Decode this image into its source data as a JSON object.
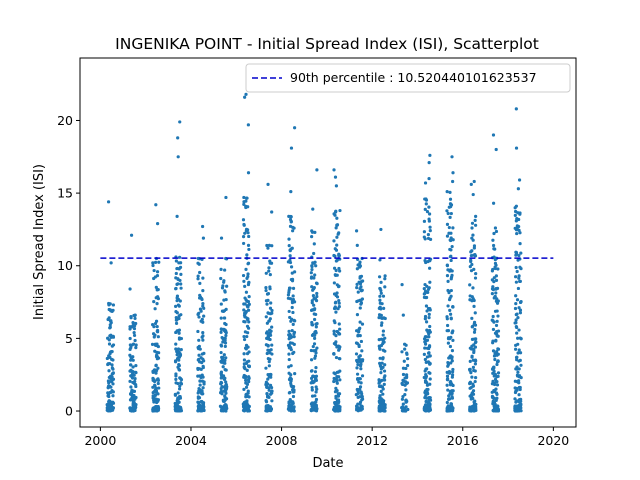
{
  "chart_data": {
    "type": "scatter",
    "title": "INGENIKA POINT - Initial Spread Index (ISI), Scatterplot",
    "xlabel": "Date",
    "ylabel": "Initial Spread Index (ISI)",
    "xlim": [
      1999.1,
      2021.0
    ],
    "ylim": [
      -1.1,
      24.3
    ],
    "x_ticks": [
      2000,
      2004,
      2008,
      2012,
      2016,
      2020
    ],
    "y_ticks": [
      0,
      5,
      10,
      15,
      20
    ],
    "grid": false,
    "legend": {
      "placement": "top-right",
      "entries": [
        {
          "label": "90th percentile : 10.520440101623537",
          "style": "dashed-line",
          "color": "#0000cc"
        }
      ]
    },
    "reference_line": {
      "y": 10.520440101623537,
      "x_range": [
        2000.0,
        2020.0
      ]
    },
    "marker_color": "#1f77b4",
    "series": [
      {
        "seasons": [
          {
            "year": 2000,
            "count": 110,
            "max": 14.4,
            "tops": [
              10.2,
              7.4
            ]
          },
          {
            "year": 2001,
            "count": 100,
            "max": 12.1,
            "tops": [
              8.4,
              6.6
            ]
          },
          {
            "year": 2002,
            "count": 105,
            "max": 14.2,
            "tops": [
              12.9,
              10.5
            ]
          },
          {
            "year": 2003,
            "count": 120,
            "max": 19.9,
            "tops": [
              18.8,
              17.5,
              13.4,
              10.6
            ]
          },
          {
            "year": 2004,
            "count": 110,
            "max": 12.7,
            "tops": [
              11.9,
              10.5
            ]
          },
          {
            "year": 2005,
            "count": 115,
            "max": 14.7,
            "tops": [
              11.9,
              10.5
            ]
          },
          {
            "year": 2006,
            "count": 140,
            "max": 21.8,
            "tops": [
              21.6,
              19.7,
              16.4,
              14.7
            ]
          },
          {
            "year": 2007,
            "count": 110,
            "max": 15.6,
            "tops": [
              13.7,
              11.4
            ]
          },
          {
            "year": 2008,
            "count": 115,
            "max": 19.5,
            "tops": [
              18.1,
              15.1,
              13.4
            ]
          },
          {
            "year": 2009,
            "count": 110,
            "max": 16.6,
            "tops": [
              13.9,
              12.4
            ]
          },
          {
            "year": 2010,
            "count": 125,
            "max": 16.6,
            "tops": [
              16.1,
              15.5,
              13.8
            ]
          },
          {
            "year": 2011,
            "count": 105,
            "max": 12.4,
            "tops": [
              11.4,
              10.5
            ]
          },
          {
            "year": 2012,
            "count": 105,
            "max": 12.5,
            "tops": [
              10.4,
              9.3
            ]
          },
          {
            "year": 2013,
            "count": 40,
            "max": 8.7,
            "tops": [
              6.6,
              4.6
            ]
          },
          {
            "year": 2014,
            "count": 145,
            "max": 17.6,
            "tops": [
              17.1,
              16.0,
              15.7,
              14.6
            ]
          },
          {
            "year": 2015,
            "count": 135,
            "max": 17.5,
            "tops": [
              16.4,
              15.8,
              15.1
            ]
          },
          {
            "year": 2016,
            "count": 115,
            "max": 15.8,
            "tops": [
              15.6,
              14.9,
              13.4
            ]
          },
          {
            "year": 2017,
            "count": 130,
            "max": 19.0,
            "tops": [
              18.0,
              14.3,
              12.6
            ]
          },
          {
            "year": 2018,
            "count": 125,
            "max": 20.8,
            "tops": [
              18.1,
              15.9,
              15.3,
              14.1
            ]
          }
        ]
      }
    ]
  }
}
